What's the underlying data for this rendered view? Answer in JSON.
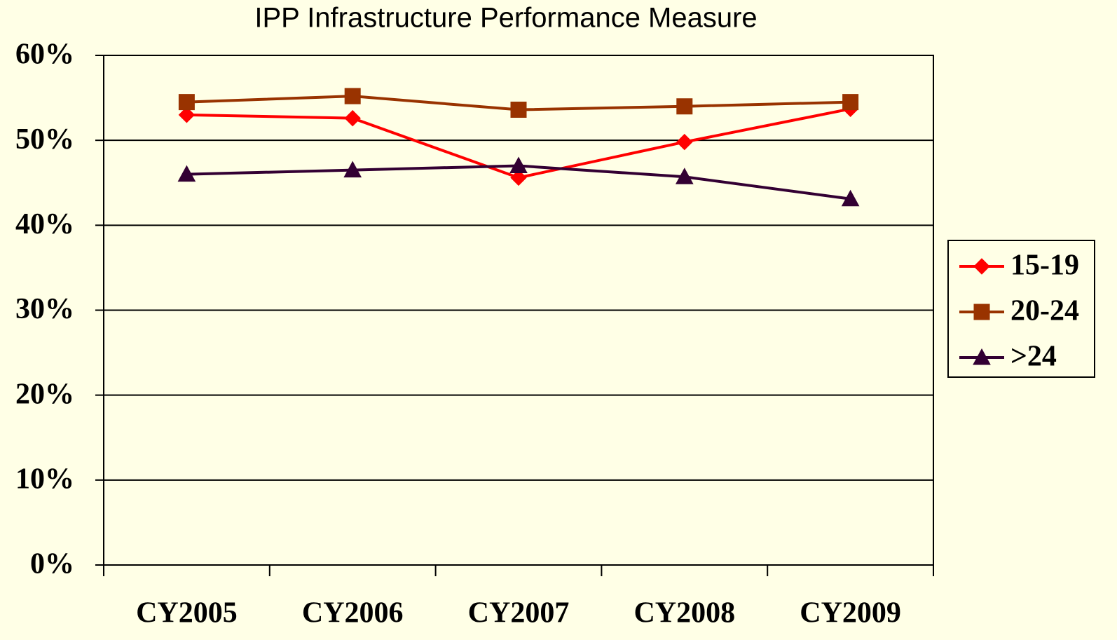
{
  "chart_data": {
    "type": "line",
    "title": "IPP Infrastructure Performance Measure",
    "categories": [
      "CY2005",
      "CY2006",
      "CY2007",
      "CY2008",
      "CY2009"
    ],
    "series": [
      {
        "name": "15-19",
        "color": "#ff0000",
        "marker": "diamond",
        "values": [
          53.0,
          52.6,
          45.6,
          49.8,
          53.7
        ]
      },
      {
        "name": "20-24",
        "color": "#993300",
        "marker": "square",
        "values": [
          54.5,
          55.2,
          53.6,
          54.0,
          54.5
        ]
      },
      {
        "name": ">24",
        "color": "#330033",
        "marker": "triangle",
        "values": [
          46.0,
          46.5,
          47.0,
          45.7,
          43.1
        ]
      }
    ],
    "ylim": [
      0,
      60
    ],
    "yticks": [
      {
        "value": 0,
        "label": "0%"
      },
      {
        "value": 10,
        "label": "10%"
      },
      {
        "value": 20,
        "label": "20%"
      },
      {
        "value": 30,
        "label": "30%"
      },
      {
        "value": 40,
        "label": "40%"
      },
      {
        "value": 50,
        "label": "50%"
      },
      {
        "value": 60,
        "label": "60%"
      }
    ],
    "grid": true,
    "legend": "right"
  }
}
